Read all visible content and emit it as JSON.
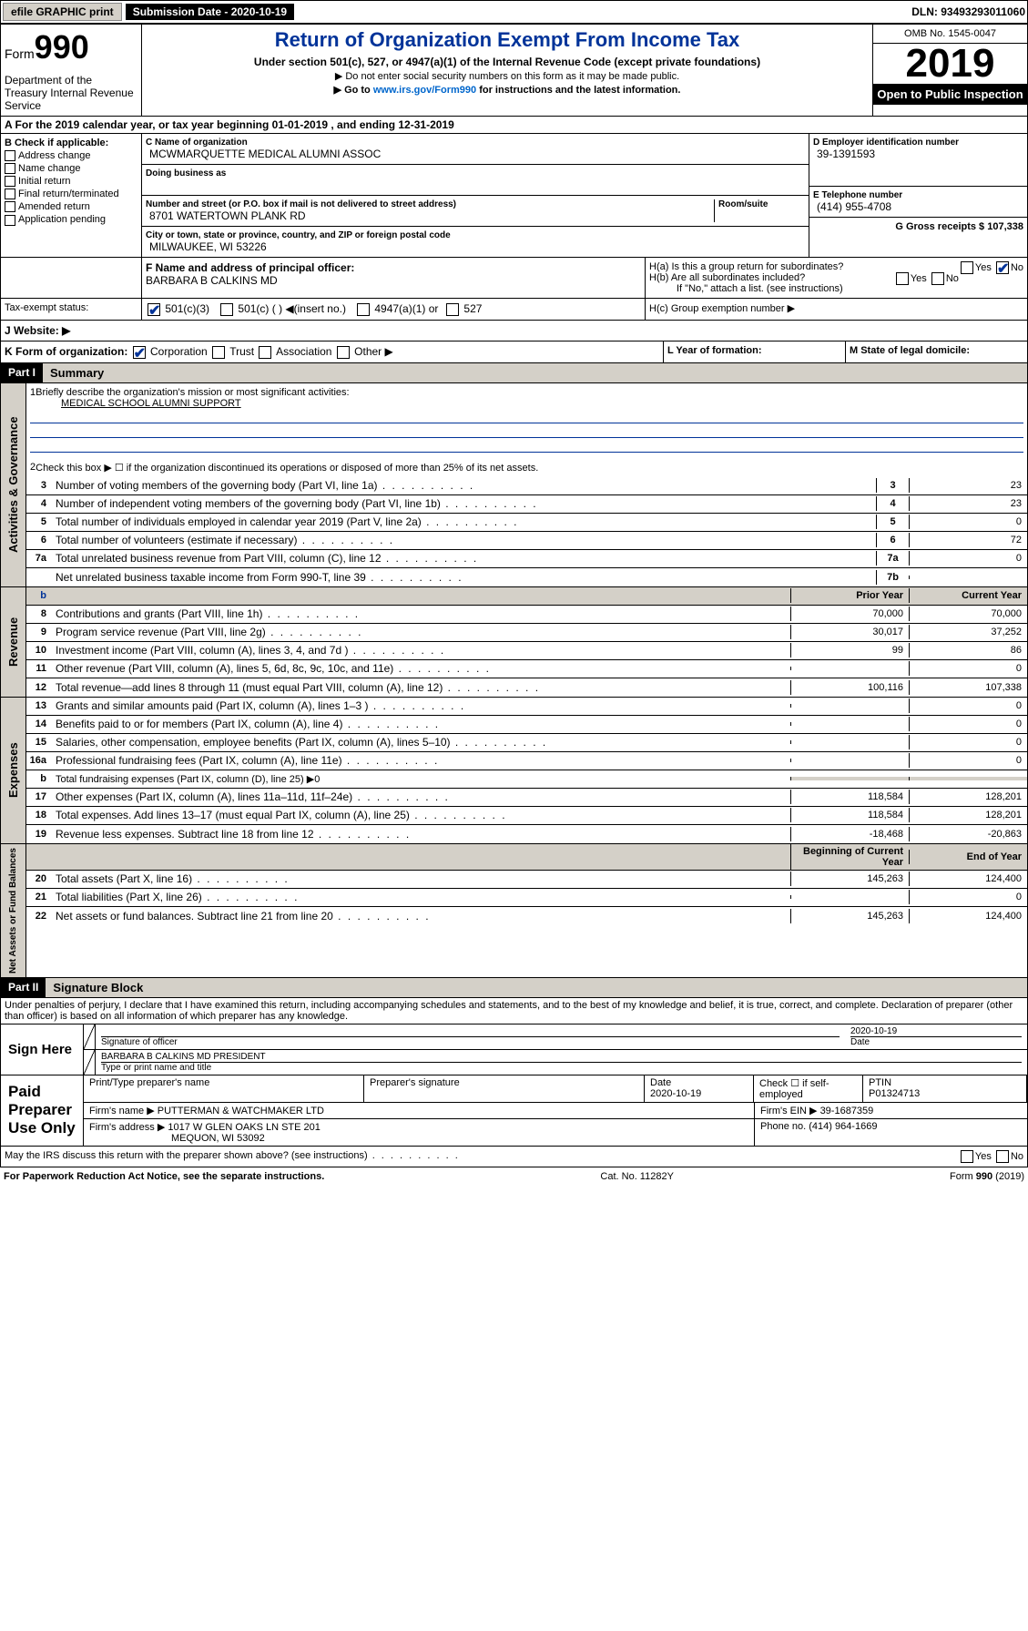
{
  "topbar": {
    "efile": "efile GRAPHIC print",
    "subm_label": "Submission Date - 2020-10-19",
    "dln": "DLN: 93493293011060"
  },
  "header": {
    "form_label": "Form",
    "form_num": "990",
    "dept": "Department of the Treasury Internal Revenue Service",
    "title": "Return of Organization Exempt From Income Tax",
    "subtitle": "Under section 501(c), 527, or 4947(a)(1) of the Internal Revenue Code (except private foundations)",
    "line1": "▶ Do not enter social security numbers on this form as it may be made public.",
    "line2_pre": "▶ Go to ",
    "line2_link": "www.irs.gov/Form990",
    "line2_post": " for instructions and the latest information.",
    "omb": "OMB No. 1545-0047",
    "year": "2019",
    "open_public": "Open to Public Inspection"
  },
  "rowA": "A For the 2019 calendar year, or tax year beginning 01-01-2019    , and ending 12-31-2019",
  "colB": {
    "hdr": "B Check if applicable:",
    "items": [
      "Address change",
      "Name change",
      "Initial return",
      "Final return/terminated",
      "Amended return",
      "Application pending"
    ]
  },
  "colC": {
    "name_lbl": "C Name of organization",
    "name_val": "MCWMARQUETTE MEDICAL ALUMNI ASSOC",
    "dba_lbl": "Doing business as",
    "addr_lbl": "Number and street (or P.O. box if mail is not delivered to street address)",
    "room_lbl": "Room/suite",
    "addr_val": "8701 WATERTOWN PLANK RD",
    "city_lbl": "City or town, state or province, country, and ZIP or foreign postal code",
    "city_val": "MILWAUKEE, WI  53226",
    "officer_lbl": "F  Name and address of principal officer:",
    "officer_val": "BARBARA B CALKINS MD"
  },
  "colDE": {
    "d_lbl": "D Employer identification number",
    "d_val": "39-1391593",
    "e_lbl": "E Telephone number",
    "e_val": "(414) 955-4708",
    "g_lbl": "G Gross receipts $ 107,338"
  },
  "rowH": {
    "ha": "H(a)  Is this a group return for subordinates?",
    "hb": "H(b)  Are all subordinates included?",
    "hb_note": "If \"No,\" attach a list. (see instructions)",
    "hc": "H(c)  Group exemption number ▶"
  },
  "rowI": {
    "lbl": "Tax-exempt status:",
    "opt1": "501(c)(3)",
    "opt2": "501(c) (  ) ◀(insert no.)",
    "opt3": "4947(a)(1) or",
    "opt4": "527"
  },
  "rowJ": "J    Website: ▶",
  "rowK": "K Form of organization:",
  "rowK_opts": [
    "Corporation",
    "Trust",
    "Association",
    "Other ▶"
  ],
  "rowL": "L Year of formation:",
  "rowM": "M State of legal domicile:",
  "part1": {
    "num": "Part I",
    "title": "Summary"
  },
  "summary": {
    "l1": "Briefly describe the organization's mission or most significant activities:",
    "l1_val": "MEDICAL SCHOOL ALUMNI SUPPORT",
    "l2": "Check this box ▶ ☐  if the organization discontinued its operations or disposed of more than 25% of its net assets.",
    "l3": {
      "desc": "Number of voting members of the governing body (Part VI, line 1a)",
      "no": "3",
      "val": "23"
    },
    "l4": {
      "desc": "Number of independent voting members of the governing body (Part VI, line 1b)",
      "no": "4",
      "val": "23"
    },
    "l5": {
      "desc": "Total number of individuals employed in calendar year 2019 (Part V, line 2a)",
      "no": "5",
      "val": "0"
    },
    "l6": {
      "desc": "Total number of volunteers (estimate if necessary)",
      "no": "6",
      "val": "72"
    },
    "l7a": {
      "desc": "Total unrelated business revenue from Part VIII, column (C), line 12",
      "no": "7a",
      "val": "0"
    },
    "l7b": {
      "desc": "Net unrelated business taxable income from Form 990-T, line 39",
      "no": "7b",
      "val": ""
    }
  },
  "colheaders": {
    "prior": "Prior Year",
    "current": "Current Year",
    "begin": "Beginning of Current Year",
    "end": "End of Year"
  },
  "revenue": [
    {
      "n": "8",
      "desc": "Contributions and grants (Part VIII, line 1h)",
      "p": "70,000",
      "c": "70,000"
    },
    {
      "n": "9",
      "desc": "Program service revenue (Part VIII, line 2g)",
      "p": "30,017",
      "c": "37,252"
    },
    {
      "n": "10",
      "desc": "Investment income (Part VIII, column (A), lines 3, 4, and 7d )",
      "p": "99",
      "c": "86"
    },
    {
      "n": "11",
      "desc": "Other revenue (Part VIII, column (A), lines 5, 6d, 8c, 9c, 10c, and 11e)",
      "p": "",
      "c": "0"
    },
    {
      "n": "12",
      "desc": "Total revenue—add lines 8 through 11 (must equal Part VIII, column (A), line 12)",
      "p": "100,116",
      "c": "107,338"
    }
  ],
  "expenses": [
    {
      "n": "13",
      "desc": "Grants and similar amounts paid (Part IX, column (A), lines 1–3 )",
      "p": "",
      "c": "0"
    },
    {
      "n": "14",
      "desc": "Benefits paid to or for members (Part IX, column (A), line 4)",
      "p": "",
      "c": "0"
    },
    {
      "n": "15",
      "desc": "Salaries, other compensation, employee benefits (Part IX, column (A), lines 5–10)",
      "p": "",
      "c": "0"
    },
    {
      "n": "16a",
      "desc": "Professional fundraising fees (Part IX, column (A), line 11e)",
      "p": "",
      "c": "0"
    },
    {
      "n": "b",
      "desc": "Total fundraising expenses (Part IX, column (D), line 25) ▶0",
      "p": "—",
      "c": "—"
    },
    {
      "n": "17",
      "desc": "Other expenses (Part IX, column (A), lines 11a–11d, 11f–24e)",
      "p": "118,584",
      "c": "128,201"
    },
    {
      "n": "18",
      "desc": "Total expenses. Add lines 13–17 (must equal Part IX, column (A), line 25)",
      "p": "118,584",
      "c": "128,201"
    },
    {
      "n": "19",
      "desc": "Revenue less expenses. Subtract line 18 from line 12",
      "p": "-18,468",
      "c": "-20,863"
    }
  ],
  "netassets": [
    {
      "n": "20",
      "desc": "Total assets (Part X, line 16)",
      "p": "145,263",
      "c": "124,400"
    },
    {
      "n": "21",
      "desc": "Total liabilities (Part X, line 26)",
      "p": "",
      "c": "0"
    },
    {
      "n": "22",
      "desc": "Net assets or fund balances. Subtract line 21 from line 20",
      "p": "145,263",
      "c": "124,400"
    }
  ],
  "part2": {
    "num": "Part II",
    "title": "Signature Block"
  },
  "perjury": "Under penalties of perjury, I declare that I have examined this return, including accompanying schedules and statements, and to the best of my knowledge and belief, it is true, correct, and complete. Declaration of preparer (other than officer) is based on all information of which preparer has any knowledge.",
  "sign": {
    "label": "Sign Here",
    "sig_lbl": "Signature of officer",
    "date_val": "2020-10-19",
    "date_lbl": "Date",
    "name_val": "BARBARA B CALKINS MD  PRESIDENT",
    "name_lbl": "Type or print name and title"
  },
  "paid": {
    "label": "Paid Preparer Use Only",
    "h1": "Print/Type preparer's name",
    "h2": "Preparer's signature",
    "h3": "Date",
    "h3v": "2020-10-19",
    "h4": "Check ☐ if self-employed",
    "h5": "PTIN",
    "h5v": "P01324713",
    "firm_name_lbl": "Firm's name    ▶",
    "firm_name": "PUTTERMAN & WATCHMAKER LTD",
    "firm_ein_lbl": "Firm's EIN ▶",
    "firm_ein": "39-1687359",
    "firm_addr_lbl": "Firm's address ▶",
    "firm_addr": "1017 W GLEN OAKS LN STE 201",
    "firm_city": "MEQUON, WI  53092",
    "phone_lbl": "Phone no.",
    "phone": "(414) 964-1669"
  },
  "discuss": "May the IRS discuss this return with the preparer shown above? (see instructions)",
  "footer": {
    "left": "For Paperwork Reduction Act Notice, see the separate instructions.",
    "mid": "Cat. No. 11282Y",
    "right": "Form 990 (2019)"
  }
}
